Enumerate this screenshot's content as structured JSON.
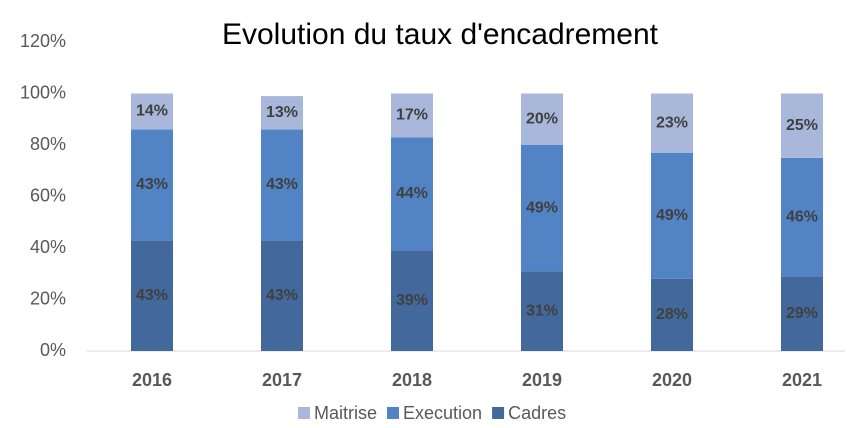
{
  "chart_data": {
    "type": "stacked_bar",
    "title": "Evolution du taux d'encadrement",
    "categories": [
      "2016",
      "2017",
      "2018",
      "2019",
      "2020",
      "2021"
    ],
    "series": [
      {
        "name": "Maitrise",
        "color": "#a9b8da",
        "values": [
          14,
          13,
          17,
          20,
          23,
          25
        ]
      },
      {
        "name": "Execution",
        "color": "#5283c4",
        "values": [
          43,
          43,
          44,
          49,
          49,
          46
        ]
      },
      {
        "name": "Cadres",
        "color": "#43699c",
        "values": [
          43,
          43,
          39,
          31,
          28,
          29
        ]
      }
    ],
    "ylim": [
      0,
      120
    ],
    "yticks": [
      {
        "value": 0,
        "label": "0%"
      },
      {
        "value": 20,
        "label": "20%"
      },
      {
        "value": 40,
        "label": "40%"
      },
      {
        "value": 60,
        "label": "60%"
      },
      {
        "value": 80,
        "label": "80%"
      },
      {
        "value": 100,
        "label": "100%"
      },
      {
        "value": 120,
        "label": "120%"
      }
    ],
    "value_labels": [
      [
        "14%",
        "13%",
        "17%",
        "20%",
        "23%",
        "25%"
      ],
      [
        "43%",
        "43%",
        "44%",
        "49%",
        "49%",
        "46%"
      ],
      [
        "43%",
        "43%",
        "39%",
        "31%",
        "28%",
        "29%"
      ]
    ],
    "legend": "bottom"
  }
}
